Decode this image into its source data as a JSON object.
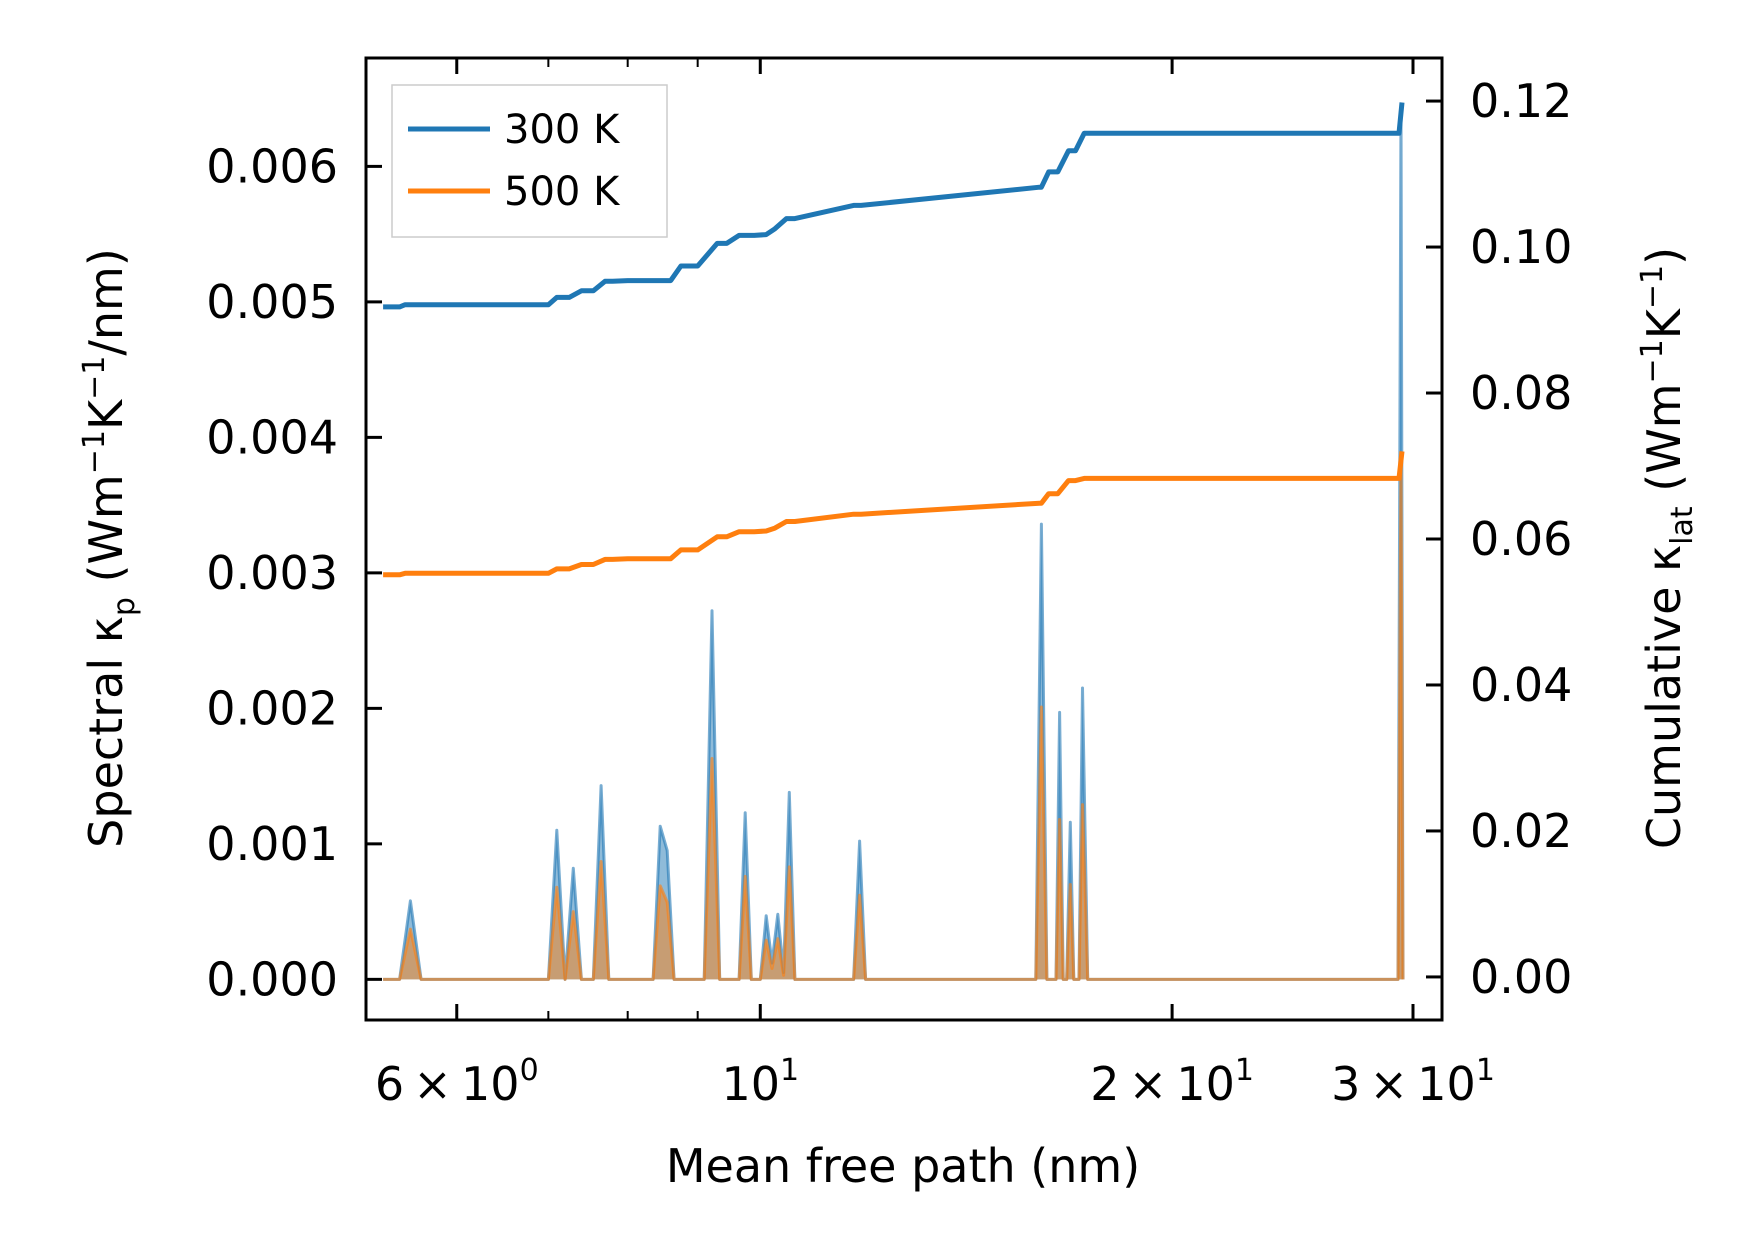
{
  "chart_data": {
    "type": "line",
    "xlabel": "Mean free path (nm)",
    "xscale": "log",
    "xlim": [
      5.15,
      31.5
    ],
    "x_ticks": [
      {
        "value": 6,
        "mantissa": "6",
        "exponent": "0",
        "sci": true
      },
      {
        "value": 10,
        "mantissa": "",
        "exponent": "1",
        "sci": false
      },
      {
        "value": 20,
        "mantissa": "2",
        "exponent": "1",
        "sci": true
      },
      {
        "value": 30,
        "mantissa": "3",
        "exponent": "1",
        "sci": true
      }
    ],
    "left_axis": {
      "label_parts": {
        "prefix": "Spectral κ",
        "sub": "p",
        "unit_open": " (Wm",
        "sup1": "−1",
        "unit_mid": "K",
        "sup2": "−1",
        "unit_close": "/nm)"
      },
      "ylim": [
        -0.0003,
        0.0068
      ],
      "ticks": [
        0,
        0.001,
        0.002,
        0.003,
        0.004,
        0.005,
        0.006
      ],
      "tick_labels": [
        "0.000",
        "0.001",
        "0.002",
        "0.003",
        "0.004",
        "0.005",
        "0.006"
      ]
    },
    "right_axis": {
      "label_parts": {
        "prefix": "Cumulative κ",
        "sub": "lat",
        "unit_open": " (Wm",
        "sup1": "−1",
        "unit_mid": "K",
        "sup2": "−1",
        "unit_close": ")"
      },
      "ylim": [
        -0.0059,
        0.1259
      ],
      "ticks": [
        0,
        0.02,
        0.04,
        0.06,
        0.08,
        0.1,
        0.12
      ],
      "tick_labels": [
        "0.00",
        "0.02",
        "0.04",
        "0.06",
        "0.08",
        "0.10",
        "0.12"
      ]
    },
    "legend": {
      "position": "top-left",
      "entries": [
        "300 K",
        "500 K"
      ]
    },
    "colors": {
      "t300": "#1f77b4",
      "t500": "#ff7f0e",
      "spectral_alpha": 0.5
    },
    "cumulative_x": [
      5.3,
      5.45,
      5.5,
      7.0,
      7.1,
      7.25,
      7.4,
      7.55,
      7.7,
      7.8,
      8.0,
      8.6,
      8.75,
      9.0,
      9.3,
      9.45,
      9.65,
      9.9,
      10.1,
      10.25,
      10.45,
      10.6,
      11.7,
      11.85,
      16.0,
      16.05,
      16.25,
      16.5,
      16.8,
      17.0,
      17.25,
      17.5,
      29.3,
      29.45
    ],
    "series": [
      {
        "name": "300 K",
        "cumulative": [
          0.0918,
          0.0918,
          0.0921,
          0.0921,
          0.0931,
          0.0931,
          0.094,
          0.094,
          0.0953,
          0.0953,
          0.0954,
          0.0954,
          0.0974,
          0.0974,
          0.1005,
          0.1005,
          0.1016,
          0.1016,
          0.1017,
          0.1025,
          0.1039,
          0.1039,
          0.1057,
          0.1057,
          0.1082,
          0.1082,
          0.1103,
          0.1103,
          0.1132,
          0.1132,
          0.1156,
          0.1156,
          0.1156,
          0.1198
        ],
        "spectral": [
          {
            "x": 5.3,
            "y": 0
          },
          {
            "x": 5.45,
            "y": 0
          },
          {
            "x": 5.55,
            "y": 0.00058
          },
          {
            "x": 5.65,
            "y": 0
          },
          {
            "x": 7.0,
            "y": 0
          },
          {
            "x": 7.1,
            "y": 0.0011
          },
          {
            "x": 7.2,
            "y": 0
          },
          {
            "x": 7.3,
            "y": 0.00082
          },
          {
            "x": 7.4,
            "y": 0
          },
          {
            "x": 7.55,
            "y": 0
          },
          {
            "x": 7.65,
            "y": 0.00143
          },
          {
            "x": 7.75,
            "y": 0
          },
          {
            "x": 8.35,
            "y": 0
          },
          {
            "x": 8.45,
            "y": 0.00113
          },
          {
            "x": 8.55,
            "y": 0.00095
          },
          {
            "x": 8.65,
            "y": 0
          },
          {
            "x": 9.1,
            "y": 0
          },
          {
            "x": 9.22,
            "y": 0.00272
          },
          {
            "x": 9.34,
            "y": 0
          },
          {
            "x": 9.65,
            "y": 0
          },
          {
            "x": 9.75,
            "y": 0.00123
          },
          {
            "x": 9.85,
            "y": 0
          },
          {
            "x": 10.0,
            "y": 0
          },
          {
            "x": 10.1,
            "y": 0.00047
          },
          {
            "x": 10.2,
            "y": 0.00012
          },
          {
            "x": 10.3,
            "y": 0.00048
          },
          {
            "x": 10.4,
            "y": 5e-05
          },
          {
            "x": 10.5,
            "y": 0.00138
          },
          {
            "x": 10.6,
            "y": 0
          },
          {
            "x": 11.7,
            "y": 0
          },
          {
            "x": 11.82,
            "y": 0.00102
          },
          {
            "x": 11.94,
            "y": 0
          },
          {
            "x": 15.9,
            "y": 0
          },
          {
            "x": 16.05,
            "y": 0.00336
          },
          {
            "x": 16.2,
            "y": 0
          },
          {
            "x": 16.45,
            "y": 0
          },
          {
            "x": 16.55,
            "y": 0.00197
          },
          {
            "x": 16.65,
            "y": 0
          },
          {
            "x": 16.75,
            "y": 0
          },
          {
            "x": 16.85,
            "y": 0.00116
          },
          {
            "x": 16.95,
            "y": 0
          },
          {
            "x": 17.1,
            "y": 0
          },
          {
            "x": 17.2,
            "y": 0.00215
          },
          {
            "x": 17.35,
            "y": 0
          },
          {
            "x": 29.25,
            "y": 0
          },
          {
            "x": 29.4,
            "y": 0.00645
          },
          {
            "x": 29.5,
            "y": 0
          }
        ]
      },
      {
        "name": "500 K",
        "cumulative": [
          0.0551,
          0.0551,
          0.0553,
          0.0553,
          0.0559,
          0.0559,
          0.0565,
          0.0565,
          0.0572,
          0.0572,
          0.0573,
          0.0573,
          0.0585,
          0.0585,
          0.0603,
          0.0603,
          0.061,
          0.061,
          0.0611,
          0.0615,
          0.0624,
          0.0624,
          0.0634,
          0.0634,
          0.0649,
          0.0649,
          0.0662,
          0.0662,
          0.068,
          0.068,
          0.0683,
          0.0683,
          0.0683,
          0.072
        ],
        "spectral": [
          {
            "x": 5.3,
            "y": 0
          },
          {
            "x": 5.45,
            "y": 0
          },
          {
            "x": 5.55,
            "y": 0.00037
          },
          {
            "x": 5.65,
            "y": 0
          },
          {
            "x": 7.0,
            "y": 0
          },
          {
            "x": 7.1,
            "y": 0.00068
          },
          {
            "x": 7.2,
            "y": 0
          },
          {
            "x": 7.3,
            "y": 0.0005
          },
          {
            "x": 7.4,
            "y": 0
          },
          {
            "x": 7.55,
            "y": 0
          },
          {
            "x": 7.65,
            "y": 0.00087
          },
          {
            "x": 7.75,
            "y": 0
          },
          {
            "x": 8.35,
            "y": 0
          },
          {
            "x": 8.45,
            "y": 0.00069
          },
          {
            "x": 8.55,
            "y": 0.00057
          },
          {
            "x": 8.65,
            "y": 0
          },
          {
            "x": 9.1,
            "y": 0
          },
          {
            "x": 9.22,
            "y": 0.00163
          },
          {
            "x": 9.34,
            "y": 0
          },
          {
            "x": 9.65,
            "y": 0
          },
          {
            "x": 9.75,
            "y": 0.00076
          },
          {
            "x": 9.85,
            "y": 0
          },
          {
            "x": 10.0,
            "y": 0
          },
          {
            "x": 10.1,
            "y": 0.00029
          },
          {
            "x": 10.2,
            "y": 8e-05
          },
          {
            "x": 10.3,
            "y": 0.0003
          },
          {
            "x": 10.4,
            "y": 3e-05
          },
          {
            "x": 10.5,
            "y": 0.00083
          },
          {
            "x": 10.6,
            "y": 0
          },
          {
            "x": 11.7,
            "y": 0
          },
          {
            "x": 11.82,
            "y": 0.00062
          },
          {
            "x": 11.94,
            "y": 0
          },
          {
            "x": 15.9,
            "y": 0
          },
          {
            "x": 16.05,
            "y": 0.00201
          },
          {
            "x": 16.2,
            "y": 0
          },
          {
            "x": 16.45,
            "y": 0
          },
          {
            "x": 16.55,
            "y": 0.00118
          },
          {
            "x": 16.65,
            "y": 0
          },
          {
            "x": 16.75,
            "y": 0
          },
          {
            "x": 16.85,
            "y": 0.0007
          },
          {
            "x": 16.95,
            "y": 0
          },
          {
            "x": 17.1,
            "y": 0
          },
          {
            "x": 17.2,
            "y": 0.00129
          },
          {
            "x": 17.35,
            "y": 0
          },
          {
            "x": 29.25,
            "y": 0
          },
          {
            "x": 29.4,
            "y": 0.00387
          },
          {
            "x": 29.5,
            "y": 0
          }
        ]
      }
    ]
  }
}
